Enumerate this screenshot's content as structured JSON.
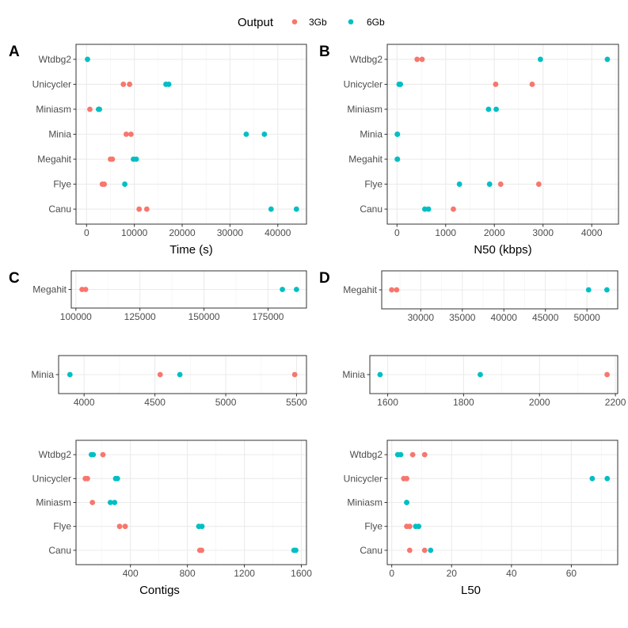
{
  "legend": {
    "title": "Output",
    "entries": [
      {
        "label": "3Gb",
        "color": "#F8766D"
      },
      {
        "label": "6Gb",
        "color": "#00BFC4"
      }
    ]
  },
  "chart_data": [
    {
      "panel": "A",
      "type": "scatter",
      "xlabel": "Time (s)",
      "ylabel": "",
      "categories": [
        "Wtdbg2",
        "Unicycler",
        "Miniasm",
        "Minia",
        "Megahit",
        "Flye",
        "Canu"
      ],
      "xlim": [
        -2200,
        46000
      ],
      "xticks": [
        0,
        10000,
        20000,
        30000,
        40000
      ],
      "xminor": [
        5000,
        15000,
        25000,
        35000,
        45000
      ],
      "grid": true,
      "series": [
        {
          "name": "3Gb",
          "points": [
            [
              "Unicycler",
              7700
            ],
            [
              "Unicycler",
              9000
            ],
            [
              "Miniasm",
              700
            ],
            [
              "Minia",
              8300
            ],
            [
              "Minia",
              9300
            ],
            [
              "Megahit",
              5000
            ],
            [
              "Megahit",
              5400
            ],
            [
              "Flye",
              3300
            ],
            [
              "Flye",
              3700
            ],
            [
              "Canu",
              11000
            ],
            [
              "Canu",
              12600
            ]
          ]
        },
        {
          "name": "6Gb",
          "points": [
            [
              "Wtdbg2",
              200
            ],
            [
              "Unicycler",
              16600
            ],
            [
              "Unicycler",
              17200
            ],
            [
              "Miniasm",
              2500
            ],
            [
              "Miniasm",
              2700
            ],
            [
              "Minia",
              33400
            ],
            [
              "Minia",
              37200
            ],
            [
              "Megahit",
              9800
            ],
            [
              "Megahit",
              10400
            ],
            [
              "Flye",
              8000
            ],
            [
              "Canu",
              38600
            ],
            [
              "Canu",
              43900
            ]
          ]
        }
      ]
    },
    {
      "panel": "B",
      "type": "scatter",
      "xlabel": "N50 (kbps)",
      "ylabel": "",
      "categories": [
        "Wtdbg2",
        "Unicycler",
        "Miniasm",
        "Minia",
        "Megahit",
        "Flye",
        "Canu"
      ],
      "xlim": [
        -200,
        4550
      ],
      "xticks": [
        0,
        1000,
        2000,
        3000,
        4000
      ],
      "xminor": [
        500,
        1500,
        2500,
        3500,
        4500
      ],
      "grid": true,
      "series": [
        {
          "name": "3Gb",
          "points": [
            [
              "Wtdbg2",
              413
            ],
            [
              "Wtdbg2",
              516
            ],
            [
              "Unicycler",
              2027
            ],
            [
              "Unicycler",
              2777
            ],
            [
              "Flye",
              2130
            ],
            [
              "Flye",
              2913
            ],
            [
              "Canu",
              1158
            ]
          ]
        },
        {
          "name": "6Gb",
          "points": [
            [
              "Wtdbg2",
              2946
            ],
            [
              "Wtdbg2",
              4321
            ],
            [
              "Unicycler",
              43
            ],
            [
              "Unicycler",
              71
            ],
            [
              "Miniasm",
              1880
            ],
            [
              "Miniasm",
              2038
            ],
            [
              "Minia",
              5
            ],
            [
              "Minia",
              10
            ],
            [
              "Megahit",
              5
            ],
            [
              "Megahit",
              10
            ],
            [
              "Flye",
              1283
            ],
            [
              "Flye",
              1902
            ],
            [
              "Canu",
              571
            ],
            [
              "Canu",
              647
            ]
          ]
        }
      ]
    },
    {
      "panel": "C",
      "type": "scatter",
      "xlabel": "",
      "categories": [
        "Megahit"
      ],
      "xlim": [
        98200,
        190000
      ],
      "xticks": [
        100000,
        125000,
        150000,
        175000
      ],
      "xminor": [
        112500,
        137500,
        162500,
        187500
      ],
      "grid": true,
      "series": [
        {
          "name": "3Gb",
          "points": [
            [
              "Megahit",
              102400
            ],
            [
              "Megahit",
              103800
            ]
          ]
        },
        {
          "name": "6Gb",
          "points": [
            [
              "Megahit",
              180600
            ],
            [
              "Megahit",
              186100
            ]
          ]
        }
      ]
    },
    {
      "panel": "C",
      "type": "scatter",
      "xlabel": "",
      "categories": [
        "Minia"
      ],
      "xlim": [
        3820,
        5570
      ],
      "xticks": [
        4000,
        4500,
        5000,
        5500
      ],
      "xminor": [
        4250,
        4750,
        5250
      ],
      "grid": true,
      "series": [
        {
          "name": "3Gb",
          "points": [
            [
              "Minia",
              4537
            ],
            [
              "Minia",
              5487
            ]
          ]
        },
        {
          "name": "6Gb",
          "points": [
            [
              "Minia",
              3900
            ],
            [
              "Minia",
              4676
            ]
          ]
        }
      ]
    },
    {
      "panel": "C",
      "type": "scatter",
      "xlabel": "Contigs",
      "categories": [
        "Wtdbg2",
        "Unicycler",
        "Miniasm",
        "Flye",
        "Canu"
      ],
      "xlim": [
        18,
        1636
      ],
      "xticks": [
        400,
        800,
        1200,
        1600
      ],
      "xminor": [
        200,
        600,
        1000,
        1400
      ],
      "grid": true,
      "series": [
        {
          "name": "3Gb",
          "points": [
            [
              "Wtdbg2",
              207
            ],
            [
              "Unicycler",
              83
            ],
            [
              "Unicycler",
              98
            ],
            [
              "Miniasm",
              133
            ],
            [
              "Flye",
              324
            ],
            [
              "Flye",
              363
            ],
            [
              "Canu",
              887
            ],
            [
              "Canu",
              900
            ]
          ]
        },
        {
          "name": "6Gb",
          "points": [
            [
              "Wtdbg2",
              126
            ],
            [
              "Wtdbg2",
              139
            ],
            [
              "Unicycler",
              296
            ],
            [
              "Unicycler",
              309
            ],
            [
              "Miniasm",
              259
            ],
            [
              "Miniasm",
              289
            ],
            [
              "Flye",
              880
            ],
            [
              "Flye",
              902
            ],
            [
              "Canu",
              1548
            ],
            [
              "Canu",
              1561
            ]
          ]
        }
      ]
    },
    {
      "panel": "D",
      "type": "scatter",
      "xlabel": "",
      "categories": [
        "Megahit"
      ],
      "xlim": [
        25300,
        53700
      ],
      "xticks": [
        30000,
        35000,
        40000,
        45000,
        50000
      ],
      "xminor": [
        27500,
        32500,
        37500,
        42500,
        47500,
        52500
      ],
      "grid": true,
      "series": [
        {
          "name": "3Gb",
          "points": [
            [
              "Megahit",
              26500
            ],
            [
              "Megahit",
              27100
            ]
          ]
        },
        {
          "name": "6Gb",
          "points": [
            [
              "Megahit",
              50200
            ],
            [
              "Megahit",
              52400
            ]
          ]
        }
      ]
    },
    {
      "panel": "D",
      "type": "scatter",
      "xlabel": "",
      "categories": [
        "Minia"
      ],
      "xlim": [
        1553,
        2206
      ],
      "xticks": [
        1600,
        1800,
        2000,
        2200
      ],
      "xminor": [
        1700,
        1900,
        2100
      ],
      "grid": true,
      "series": [
        {
          "name": "3Gb",
          "points": [
            [
              "Minia",
              2178
            ]
          ]
        },
        {
          "name": "6Gb",
          "points": [
            [
              "Minia",
              1580
            ],
            [
              "Minia",
              1844
            ]
          ]
        }
      ]
    },
    {
      "panel": "D",
      "type": "scatter",
      "xlabel": "L50",
      "categories": [
        "Wtdbg2",
        "Unicycler",
        "Miniasm",
        "Flye",
        "Canu"
      ],
      "xlim": [
        -1.5,
        75.5
      ],
      "xticks": [
        0,
        20,
        40,
        60
      ],
      "xminor": [
        10,
        30,
        50,
        70
      ],
      "grid": true,
      "series": [
        {
          "name": "3Gb",
          "points": [
            [
              "Wtdbg2",
              7
            ],
            [
              "Wtdbg2",
              11
            ],
            [
              "Unicycler",
              4
            ],
            [
              "Unicycler",
              5
            ],
            [
              "Flye",
              5
            ],
            [
              "Flye",
              6
            ],
            [
              "Canu",
              6
            ],
            [
              "Canu",
              11
            ]
          ]
        },
        {
          "name": "6Gb",
          "points": [
            [
              "Wtdbg2",
              2
            ],
            [
              "Wtdbg2",
              3
            ],
            [
              "Unicycler",
              67
            ],
            [
              "Unicycler",
              72
            ],
            [
              "Miniasm",
              5
            ],
            [
              "Miniasm",
              5
            ],
            [
              "Flye",
              8
            ],
            [
              "Flye",
              9
            ],
            [
              "Canu",
              13
            ]
          ]
        }
      ]
    }
  ]
}
